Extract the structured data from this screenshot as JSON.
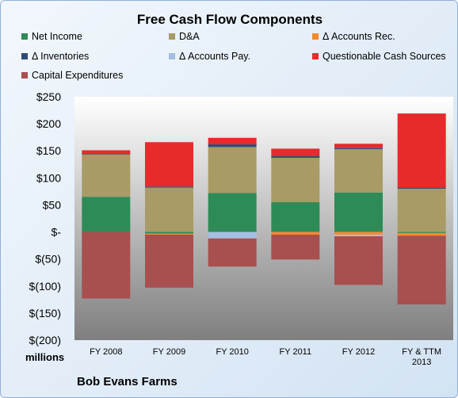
{
  "chart_data": {
    "type": "bar",
    "stacked": true,
    "title": "Free Cash Flow Components",
    "units_label": "millions",
    "company": "Bob Evans Farms",
    "categories": [
      "FY 2008",
      "FY 2009",
      "FY 2010",
      "FY 2011",
      "FY 2012",
      "FY & TTM 2013"
    ],
    "ylim": [
      -200,
      250
    ],
    "yticks": [
      250,
      200,
      150,
      100,
      50,
      0,
      -50,
      -100,
      -150,
      -200
    ],
    "ytick_labels": [
      "$250",
      "$200",
      "$150",
      "$100",
      "$50",
      "$-",
      "$(50)",
      "$(100)",
      "$(150)",
      "$(200)"
    ],
    "legend_position": "top",
    "grid": false,
    "series": [
      {
        "name": "Net Income",
        "color": "#2e8b57",
        "values": [
          65,
          -3,
          72,
          55,
          73,
          -2
        ]
      },
      {
        "name": "D&A",
        "color": "#a89b65",
        "values": [
          78,
          82,
          85,
          82,
          80,
          80
        ]
      },
      {
        "name": "Δ Accounts Rec.",
        "color": "#f28b30",
        "values": [
          0,
          -2,
          0,
          -5,
          -5,
          -5
        ]
      },
      {
        "name": "Δ Inventories",
        "color": "#2f4a78",
        "values": [
          1,
          2,
          5,
          3,
          2,
          2
        ]
      },
      {
        "name": "Δ Accounts Pay.",
        "color": "#a5bfe0",
        "values": [
          0,
          0,
          -12,
          0,
          -3,
          0
        ]
      },
      {
        "name": "Questionable Cash Sources",
        "color": "#e52b2b",
        "values": [
          7,
          82,
          12,
          14,
          8,
          137
        ]
      },
      {
        "name": "Capital Expenditures",
        "color": "#a84f4f",
        "values": [
          -123,
          -98,
          -52,
          -46,
          -90,
          -127
        ]
      }
    ]
  }
}
